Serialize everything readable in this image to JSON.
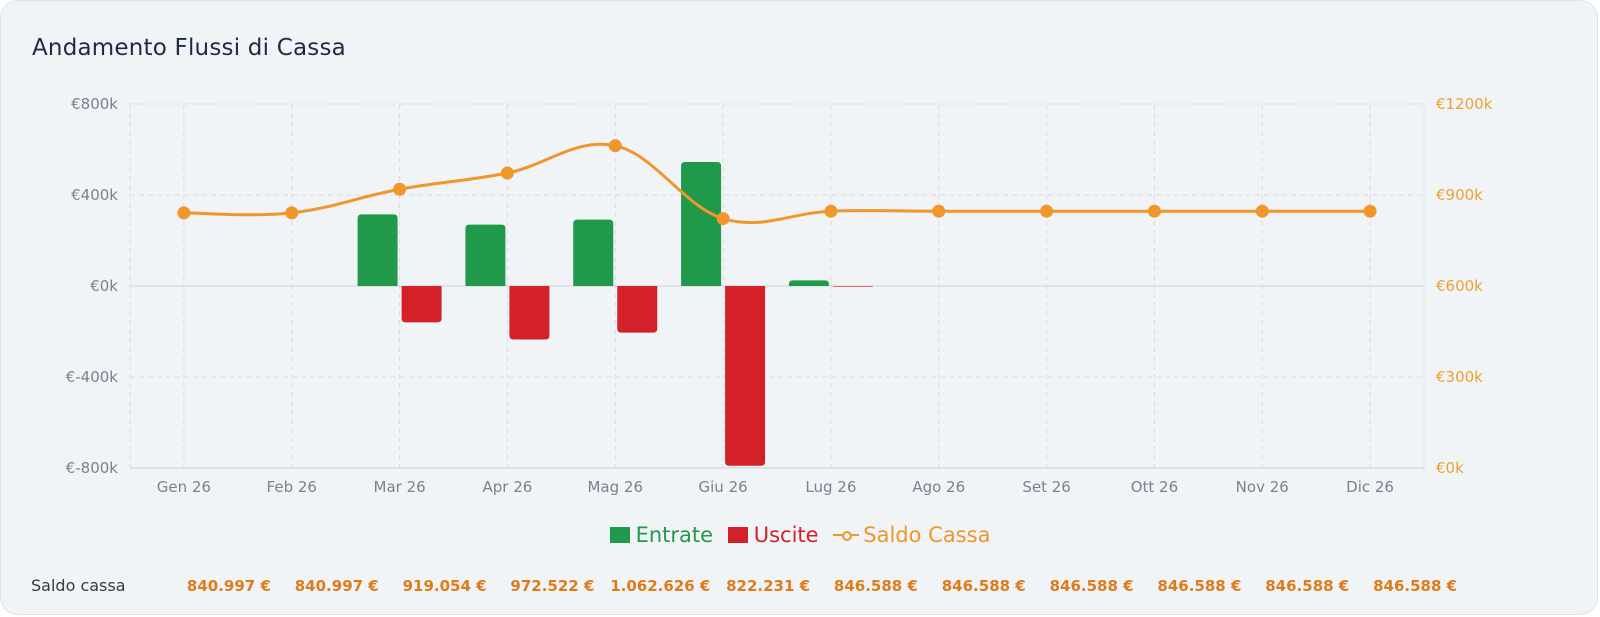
{
  "card": {
    "title": "Andamento Flussi di Cassa"
  },
  "colors": {
    "entrate": "#21994a",
    "uscite": "#d42029",
    "saldo": "#f0962a",
    "saldo_text": "#e07b1a"
  },
  "legend": {
    "entrate": "Entrate",
    "uscite": "Uscite",
    "saldo": "Saldo Cassa"
  },
  "chart_data": {
    "type": "bar",
    "categories": [
      "Gen 26",
      "Feb 26",
      "Mar 26",
      "Apr 26",
      "Mag 26",
      "Giu 26",
      "Lug 26",
      "Ago 26",
      "Set 26",
      "Ott 26",
      "Nov 26",
      "Dic 26"
    ],
    "series": [
      {
        "name": "Entrate",
        "type": "bar",
        "axis": "left",
        "values": [
          0,
          0,
          315,
          270,
          292,
          545,
          25,
          0,
          0,
          0,
          0,
          0
        ]
      },
      {
        "name": "Uscite",
        "type": "bar",
        "axis": "left",
        "values": [
          0,
          0,
          -160,
          -235,
          -205,
          -790,
          -3,
          0,
          0,
          0,
          0,
          0
        ]
      },
      {
        "name": "Saldo Cassa",
        "type": "line",
        "axis": "right",
        "values": [
          840.997,
          840.997,
          919.054,
          972.522,
          1062.626,
          822.231,
          846.588,
          846.588,
          846.588,
          846.588,
          846.588,
          846.588
        ]
      }
    ],
    "y_left": {
      "ylim": [
        -800,
        800
      ],
      "ticks": [
        "€800k",
        "€400k",
        "€0k",
        "€-400k",
        "€-800k"
      ]
    },
    "y_right": {
      "ylim": [
        0,
        1200
      ],
      "ticks": [
        "€1200k",
        "€900k",
        "€600k",
        "€300k",
        "€0k"
      ]
    },
    "grid": true,
    "legend_position": "bottom"
  },
  "saldo_row": {
    "label": "Saldo cassa",
    "values": [
      "840.997 €",
      "840.997 €",
      "919.054 €",
      "972.522 €",
      "1.062.626 €",
      "822.231 €",
      "846.588 €",
      "846.588 €",
      "846.588 €",
      "846.588 €",
      "846.588 €",
      "846.588 €"
    ]
  }
}
